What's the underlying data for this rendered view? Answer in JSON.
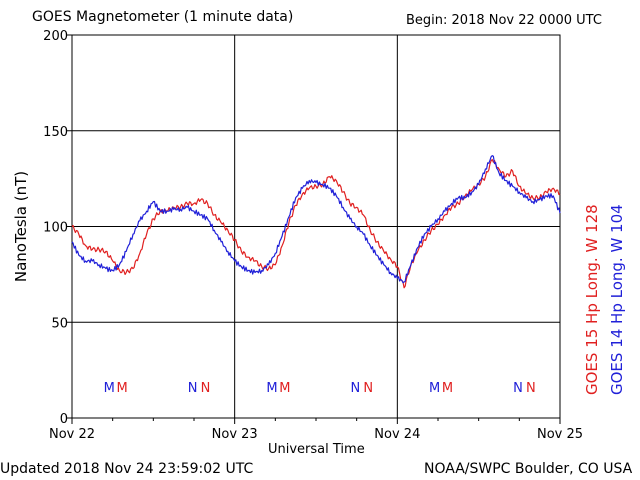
{
  "header": {
    "title": "GOES Magnetometer (1 minute data)",
    "begin": "Begin:  2018 Nov 22 0000 UTC"
  },
  "footer": {
    "updated": "Updated 2018 Nov 24 23:59:02 UTC",
    "source": "NOAA/SWPC Boulder, CO USA"
  },
  "chart_data": {
    "type": "line",
    "ylabel": "NanoTesla (nT)",
    "xlabel": "Universal Time",
    "ylim": [
      0,
      200
    ],
    "xlim": [
      0,
      72
    ],
    "x_unit": "hours since Nov 22 0000 UTC",
    "yticks": [
      0,
      50,
      100,
      150,
      200
    ],
    "xticks": [
      {
        "value": 0,
        "label": "Nov 22"
      },
      {
        "value": 24,
        "label": "Nov 23"
      },
      {
        "value": 48,
        "label": "Nov 24"
      },
      {
        "value": 72,
        "label": "Nov 25"
      }
    ],
    "grid": true,
    "legend_placement": "right",
    "series": [
      {
        "name": "GOES 15 Hp  Long. W 128",
        "color": "#e02020",
        "x": [
          0,
          1,
          2,
          3,
          4,
          5,
          6,
          7,
          8,
          9,
          10,
          11,
          12,
          13,
          14,
          15,
          16,
          17,
          18,
          19,
          20,
          21,
          22,
          23,
          24,
          25,
          26,
          27,
          28,
          29,
          30,
          31,
          32,
          33,
          34,
          35,
          36,
          37,
          38,
          39,
          40,
          41,
          42,
          43,
          44,
          45,
          46,
          47,
          48,
          49,
          50,
          51,
          52,
          53,
          54,
          55,
          56,
          57,
          58,
          59,
          60,
          61,
          62,
          63,
          64,
          65,
          66,
          67,
          68,
          69,
          70,
          71,
          72
        ],
        "y": [
          100,
          96,
          90,
          88,
          88,
          87,
          82,
          77,
          76,
          78,
          86,
          96,
          104,
          108,
          108,
          110,
          110,
          112,
          112,
          114,
          112,
          106,
          102,
          98,
          93,
          87,
          84,
          82,
          79,
          78,
          80,
          90,
          102,
          111,
          117,
          120,
          121,
          122,
          126,
          124,
          118,
          112,
          110,
          106,
          98,
          92,
          87,
          83,
          79,
          68,
          80,
          87,
          93,
          98,
          101,
          106,
          110,
          112,
          116,
          119,
          122,
          126,
          135,
          130,
          126,
          129,
          121,
          117,
          115,
          115,
          118,
          120,
          117
        ]
      },
      {
        "name": "GOES 14 Hp  Long. W 104",
        "color": "#2020d8",
        "x": [
          0,
          1,
          2,
          3,
          4,
          5,
          6,
          7,
          8,
          9,
          10,
          11,
          12,
          13,
          14,
          15,
          16,
          17,
          18,
          19,
          20,
          21,
          22,
          23,
          24,
          25,
          26,
          27,
          28,
          29,
          30,
          31,
          32,
          33,
          34,
          35,
          36,
          37,
          38,
          39,
          40,
          41,
          42,
          43,
          44,
          45,
          46,
          47,
          48,
          49,
          50,
          51,
          52,
          53,
          54,
          55,
          56,
          57,
          58,
          59,
          60,
          61,
          62,
          63,
          64,
          65,
          66,
          67,
          68,
          69,
          70,
          71,
          72
        ],
        "y": [
          92,
          85,
          82,
          82,
          80,
          78,
          77,
          80,
          87,
          96,
          103,
          108,
          113,
          108,
          108,
          109,
          109,
          110,
          108,
          106,
          104,
          98,
          92,
          87,
          82,
          79,
          77,
          76,
          77,
          80,
          86,
          95,
          105,
          115,
          120,
          124,
          123,
          122,
          120,
          116,
          110,
          104,
          100,
          96,
          90,
          85,
          80,
          76,
          73,
          71,
          80,
          89,
          96,
          100,
          104,
          108,
          112,
          115,
          115,
          118,
          122,
          130,
          137,
          128,
          124,
          121,
          118,
          115,
          113,
          114,
          116,
          116,
          107
        ]
      }
    ],
    "annotations": [
      {
        "text": "M",
        "x": 5.5,
        "series": "GOES 14 Hp  Long. W 104"
      },
      {
        "text": "M",
        "x": 7.4,
        "series": "GOES 15 Hp  Long. W 128"
      },
      {
        "text": "N",
        "x": 17.8,
        "series": "GOES 14 Hp  Long. W 104"
      },
      {
        "text": "N",
        "x": 19.7,
        "series": "GOES 15 Hp  Long. W 128"
      },
      {
        "text": "M",
        "x": 29.5,
        "series": "GOES 14 Hp  Long. W 104"
      },
      {
        "text": "M",
        "x": 31.4,
        "series": "GOES 15 Hp  Long. W 128"
      },
      {
        "text": "N",
        "x": 41.8,
        "series": "GOES 14 Hp  Long. W 104"
      },
      {
        "text": "N",
        "x": 43.7,
        "series": "GOES 15 Hp  Long. W 128"
      },
      {
        "text": "M",
        "x": 53.5,
        "series": "GOES 14 Hp  Long. W 104"
      },
      {
        "text": "M",
        "x": 55.4,
        "series": "GOES 15 Hp  Long. W 128"
      },
      {
        "text": "N",
        "x": 65.8,
        "series": "GOES 14 Hp  Long. W 104"
      },
      {
        "text": "N",
        "x": 67.7,
        "series": "GOES 15 Hp  Long. W 128"
      }
    ]
  }
}
